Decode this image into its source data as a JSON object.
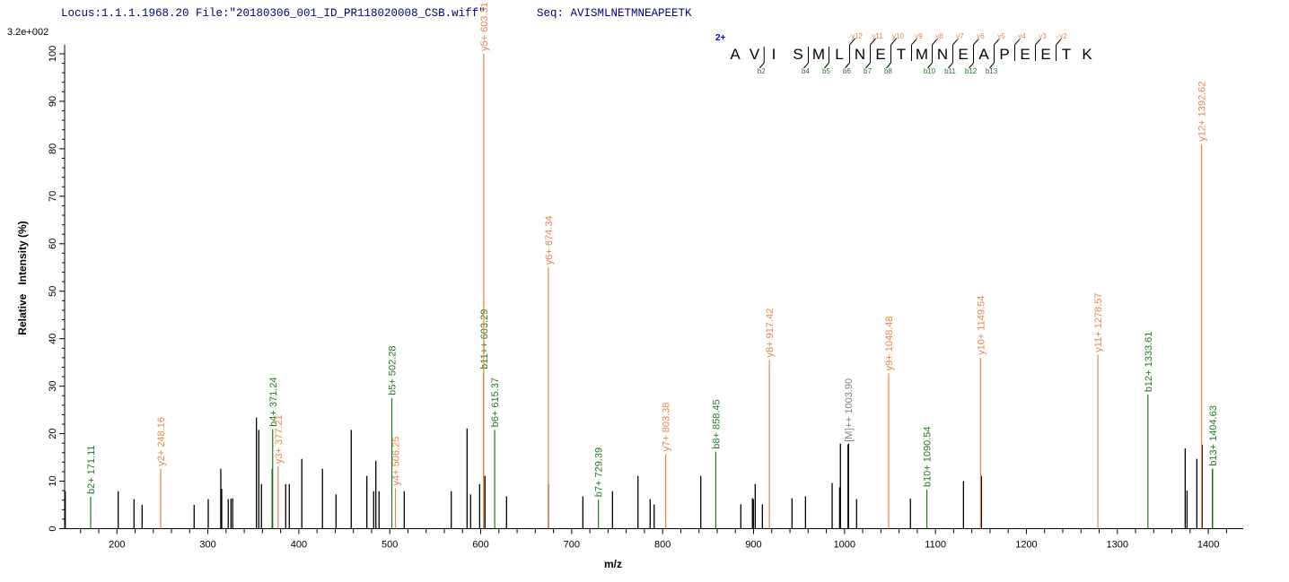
{
  "header": {
    "locus_file": "Locus:1.1.1.1968.20 File:\"20180306_001_ID_PR118020008_CSB.wiff\"",
    "seq": "Seq: AVISMLNETMNEAPEETK"
  },
  "colors": {
    "title": "#00007f",
    "b_ion": "#1f7a1f",
    "y_ion": "#e8844a",
    "precursor": "#808080",
    "unassigned": "#000000",
    "charge": "#0000ff"
  },
  "sequence_annotation": {
    "charge": "2+",
    "residues": [
      "A",
      "V",
      "I",
      "S",
      "M",
      "L",
      "N",
      "E",
      "T",
      "M",
      "N",
      "E",
      "A",
      "P",
      "E",
      "E",
      "T",
      "K"
    ],
    "b_ions": [
      2,
      4,
      5,
      6,
      7,
      8,
      10,
      11,
      12,
      13
    ],
    "y_ions": [
      12,
      11,
      10,
      9,
      8,
      7,
      6,
      5,
      4,
      3,
      2
    ]
  },
  "chart_data": {
    "type": "bar",
    "max_intensity_label": "3.2e+002",
    "xlabel": "m/z",
    "ylabel": "Relative   Intensity (%)",
    "xlim": [
      142.5,
      1438.4
    ],
    "ylim": [
      0,
      100
    ],
    "xticks": [
      200,
      300,
      400,
      500,
      600,
      700,
      800,
      900,
      1000,
      1100,
      1200,
      1300,
      1400
    ],
    "yticks": [
      0,
      10,
      20,
      30,
      40,
      50,
      60,
      70,
      80,
      90,
      100
    ],
    "grid": false,
    "annotated_peaks": [
      {
        "label": "b2+ 171.11",
        "mz": 171.11,
        "intensity": 6.7,
        "ion": "b"
      },
      {
        "label": "y2+ 248.16",
        "mz": 248.16,
        "intensity": 12.6,
        "ion": "y"
      },
      {
        "label": "b4+ 371.24",
        "mz": 371.24,
        "intensity": 20.9,
        "ion": "b"
      },
      {
        "label": "y3+ 377.21",
        "mz": 377.21,
        "intensity": 13.1,
        "ion": "y"
      },
      {
        "label": "b5+ 502.28",
        "mz": 502.28,
        "intensity": 27.5,
        "ion": "b"
      },
      {
        "label": "y4+ 506.25",
        "mz": 506.25,
        "intensity": 8.5,
        "ion": "y"
      },
      {
        "label": "b11++ 603.29",
        "mz": 603.29,
        "intensity": 33,
        "ion": "b"
      },
      {
        "label": "y5+ 603.31",
        "mz": 603.31,
        "intensity": 100,
        "ion": "y"
      },
      {
        "label": "b6+ 615.37",
        "mz": 615.37,
        "intensity": 20.8,
        "ion": "b"
      },
      {
        "label": "y6+ 674.34",
        "mz": 674.34,
        "intensity": 55,
        "ion": "y"
      },
      {
        "label": "b7+ 729.39",
        "mz": 729.39,
        "intensity": 6.1,
        "ion": "b"
      },
      {
        "label": "y7+ 803.38",
        "mz": 803.38,
        "intensity": 15.7,
        "ion": "y"
      },
      {
        "label": "b8+ 858.45",
        "mz": 858.45,
        "intensity": 16.2,
        "ion": "b"
      },
      {
        "label": "y8+ 917.42",
        "mz": 917.42,
        "intensity": 35.5,
        "ion": "y"
      },
      {
        "label": "[M]++ 1003.90",
        "mz": 1003.9,
        "intensity": 17.7,
        "ion": "precursor"
      },
      {
        "label": "y9+ 1048.48",
        "mz": 1048.48,
        "intensity": 32.7,
        "ion": "y"
      },
      {
        "label": "b10+ 1090.54",
        "mz": 1090.54,
        "intensity": 8.2,
        "ion": "b"
      },
      {
        "label": "y10+ 1149.54",
        "mz": 1149.54,
        "intensity": 36,
        "ion": "y"
      },
      {
        "label": "y11+ 1278.57",
        "mz": 1278.57,
        "intensity": 36.6,
        "ion": "y"
      },
      {
        "label": "b12+ 1333.61",
        "mz": 1333.61,
        "intensity": 28.2,
        "ion": "b"
      },
      {
        "label": "y12+ 1392.62",
        "mz": 1392.62,
        "intensity": 81,
        "ion": "y"
      },
      {
        "label": "b13+ 1404.63",
        "mz": 1404.63,
        "intensity": 12.6,
        "ion": "b"
      }
    ],
    "unassigned_peaks": [
      [
        143.2,
        7.9
      ],
      [
        201.4,
        7.9
      ],
      [
        218.8,
        6.2
      ],
      [
        227.7,
        5.0
      ],
      [
        284.9,
        5.0
      ],
      [
        300.4,
        6.2
      ],
      [
        314.2,
        12.6
      ],
      [
        315.2,
        8.4
      ],
      [
        322.4,
        6.2
      ],
      [
        325.4,
        6.3
      ],
      [
        327.3,
        6.4
      ],
      [
        353.4,
        23.4
      ],
      [
        356.0,
        20.8
      ],
      [
        358.9,
        9.4
      ],
      [
        370.8,
        12.6
      ],
      [
        385.6,
        9.4
      ],
      [
        389.5,
        9.4
      ],
      [
        403.3,
        14.7
      ],
      [
        426.0,
        12.6
      ],
      [
        440.9,
        7.2
      ],
      [
        457.6,
        20.8
      ],
      [
        474.8,
        11.1
      ],
      [
        482.3,
        7.9
      ],
      [
        484.7,
        14.3
      ],
      [
        488.2,
        7.9
      ],
      [
        515.9,
        7.9
      ],
      [
        567.6,
        7.9
      ],
      [
        585.0,
        21.1
      ],
      [
        588.9,
        7.2
      ],
      [
        598.8,
        9.4
      ],
      [
        604.7,
        11.1
      ],
      [
        628.4,
        6.8
      ],
      [
        674.5,
        9.4
      ],
      [
        712.3,
        6.8
      ],
      [
        744.9,
        7.9
      ],
      [
        772.9,
        11.1
      ],
      [
        786.3,
        6.2
      ],
      [
        790.7,
        5.1
      ],
      [
        842.0,
        11.1
      ],
      [
        886.0,
        5.1
      ],
      [
        898.8,
        6.4
      ],
      [
        899.8,
        6.2
      ],
      [
        901.8,
        9.4
      ],
      [
        909.7,
        5.1
      ],
      [
        942.3,
        6.4
      ],
      [
        957.1,
        6.8
      ],
      [
        986.4,
        9.6
      ],
      [
        994.6,
        8.7
      ],
      [
        995.5,
        17.9
      ],
      [
        1004.4,
        17.9
      ],
      [
        1013.3,
        6.2
      ],
      [
        1072.5,
        6.3
      ],
      [
        1130.8,
        10.0
      ],
      [
        1150.5,
        11.1
      ],
      [
        1374.6,
        16.9
      ],
      [
        1376.6,
        8.0
      ],
      [
        1387.4,
        14.7
      ],
      [
        1393.3,
        17.7
      ],
      [
        1404.6,
        12.6
      ]
    ]
  }
}
